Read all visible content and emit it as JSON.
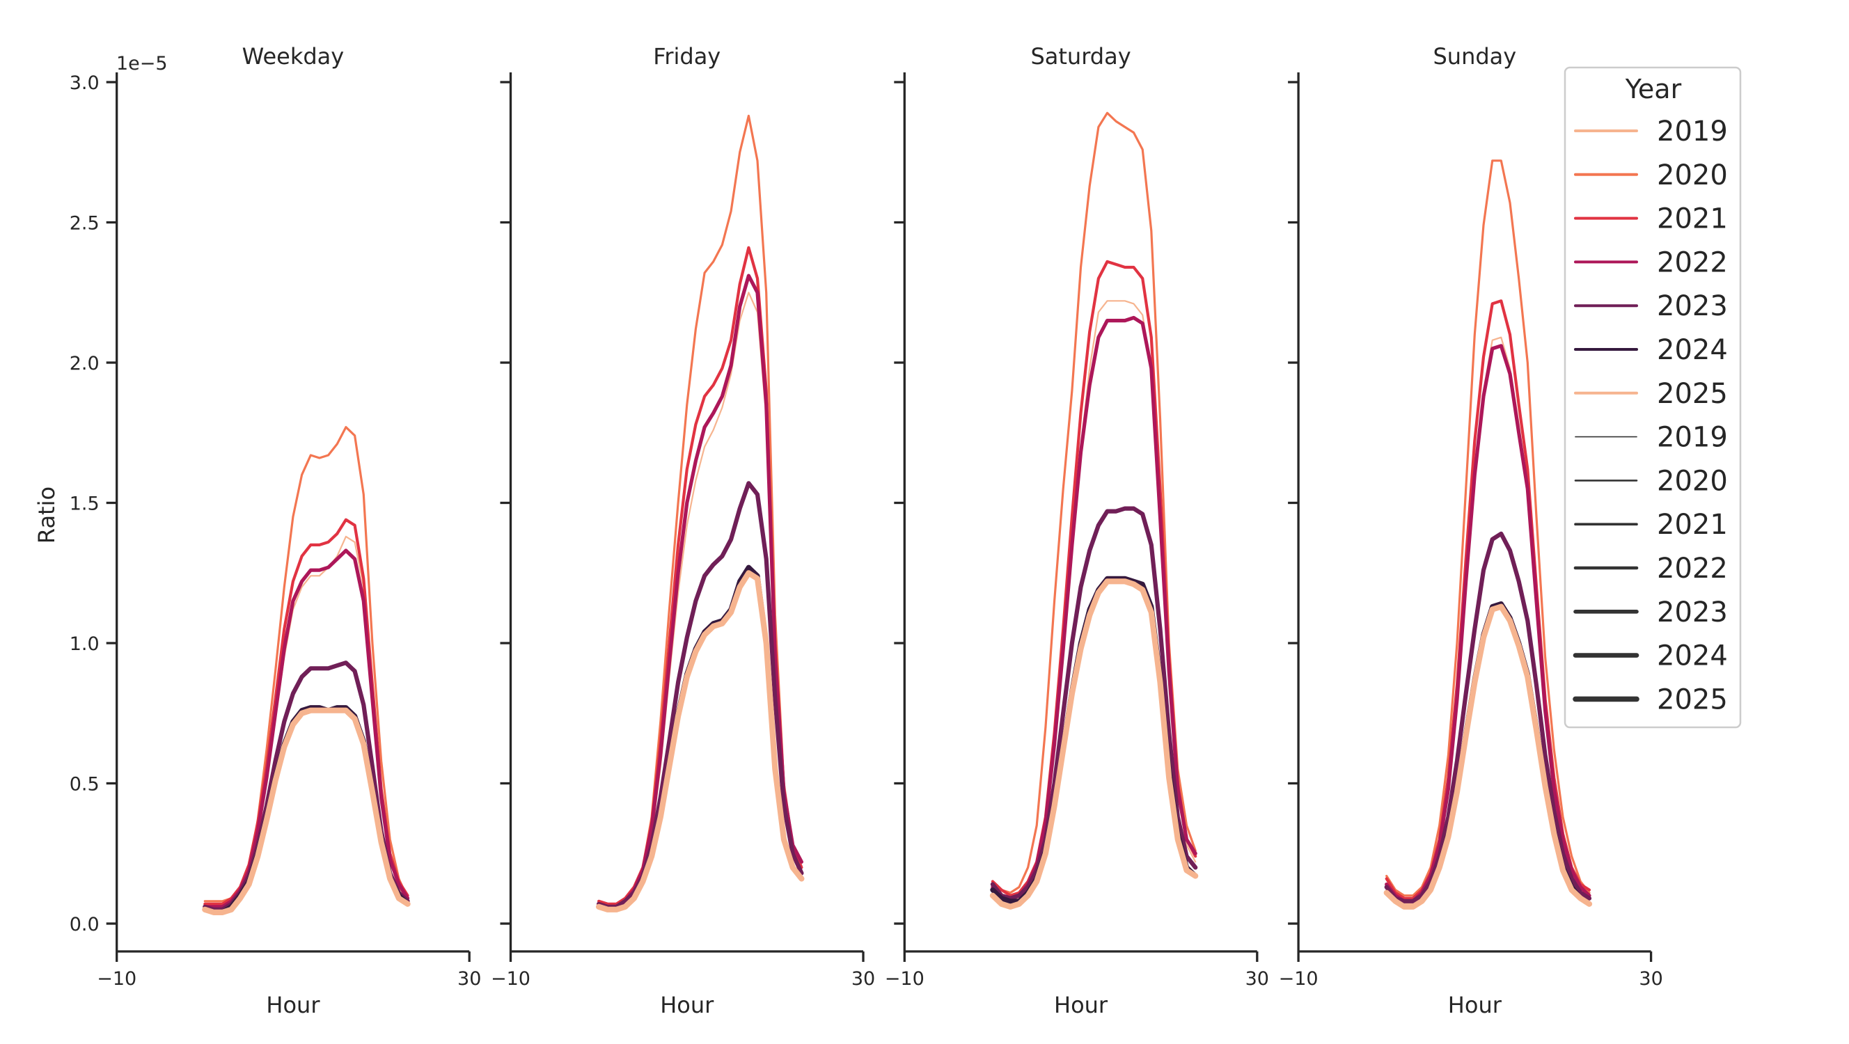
{
  "chart_data": {
    "type": "line",
    "xlabel": "Hour",
    "ylabel": "Ratio",
    "y_offset_text": "1e−5",
    "xlim": [
      -10,
      30
    ],
    "ylim": [
      -0.1,
      3.03
    ],
    "x_ticks": [
      -10,
      30
    ],
    "x_tick_labels": [
      "−10",
      "30"
    ],
    "y_ticks": [
      0,
      0.5,
      1.0,
      1.5,
      2.0,
      2.5,
      3.0
    ],
    "y_tick_labels": [
      "0.0",
      "0.5",
      "1.0",
      "1.5",
      "2.0",
      "2.5",
      "3.0"
    ],
    "grid": false,
    "hours": [
      0,
      1,
      2,
      3,
      4,
      5,
      6,
      7,
      8,
      9,
      10,
      11,
      12,
      13,
      14,
      15,
      16,
      17,
      18,
      19,
      20,
      21,
      22,
      23
    ],
    "colors": {
      "2019": "#f6b48f",
      "2020": "#f37651",
      "2021": "#e13342",
      "2022": "#ad1759",
      "2023": "#701f57",
      "2024": "#35193e",
      "2025": "#f6b48f"
    },
    "legend": {
      "title": "Year",
      "placement": "right",
      "hue_entries": [
        "2019",
        "2020",
        "2021",
        "2022",
        "2023",
        "2024",
        "2025"
      ],
      "size_entries": [
        "2019",
        "2020",
        "2021",
        "2022",
        "2023",
        "2024",
        "2025"
      ],
      "size_color": "#333333"
    },
    "panels": [
      {
        "title": "Weekday",
        "series": [
          {
            "name": "2019",
            "values": [
              0.05,
              0.05,
              0.05,
              0.07,
              0.11,
              0.18,
              0.31,
              0.5,
              0.73,
              0.95,
              1.12,
              1.2,
              1.24,
              1.24,
              1.27,
              1.31,
              1.38,
              1.36,
              1.2,
              0.8,
              0.44,
              0.22,
              0.13,
              0.08
            ]
          },
          {
            "name": "2020",
            "values": [
              0.08,
              0.08,
              0.08,
              0.09,
              0.13,
              0.2,
              0.37,
              0.62,
              0.9,
              1.2,
              1.45,
              1.6,
              1.67,
              1.66,
              1.67,
              1.71,
              1.77,
              1.74,
              1.53,
              1.0,
              0.58,
              0.3,
              0.16,
              0.09
            ]
          },
          {
            "name": "2021",
            "values": [
              0.07,
              0.07,
              0.07,
              0.09,
              0.13,
              0.21,
              0.36,
              0.56,
              0.8,
              1.05,
              1.22,
              1.31,
              1.35,
              1.35,
              1.36,
              1.39,
              1.44,
              1.42,
              1.23,
              0.85,
              0.48,
              0.25,
              0.15,
              0.1
            ]
          },
          {
            "name": "2022",
            "values": [
              0.06,
              0.06,
              0.06,
              0.08,
              0.12,
              0.19,
              0.33,
              0.52,
              0.75,
              0.98,
              1.15,
              1.22,
              1.26,
              1.26,
              1.27,
              1.3,
              1.33,
              1.3,
              1.15,
              0.8,
              0.45,
              0.23,
              0.14,
              0.09
            ]
          },
          {
            "name": "2023",
            "values": [
              0.06,
              0.05,
              0.05,
              0.07,
              0.11,
              0.17,
              0.28,
              0.42,
              0.58,
              0.72,
              0.82,
              0.88,
              0.91,
              0.91,
              0.91,
              0.92,
              0.93,
              0.9,
              0.78,
              0.56,
              0.33,
              0.18,
              0.11,
              0.08
            ]
          },
          {
            "name": "2024",
            "values": [
              0.05,
              0.04,
              0.04,
              0.06,
              0.1,
              0.15,
              0.25,
              0.38,
              0.52,
              0.64,
              0.72,
              0.76,
              0.77,
              0.77,
              0.76,
              0.77,
              0.77,
              0.74,
              0.65,
              0.48,
              0.3,
              0.16,
              0.1,
              0.07
            ]
          },
          {
            "name": "2025",
            "values": [
              0.05,
              0.04,
              0.04,
              0.05,
              0.09,
              0.14,
              0.24,
              0.37,
              0.51,
              0.63,
              0.71,
              0.75,
              0.76,
              0.76,
              0.76,
              0.76,
              0.76,
              0.73,
              0.64,
              0.47,
              0.29,
              0.16,
              0.09,
              0.07
            ]
          }
        ]
      },
      {
        "title": "Friday",
        "series": [
          {
            "name": "2019",
            "values": [
              0.06,
              0.05,
              0.05,
              0.07,
              0.11,
              0.17,
              0.31,
              0.56,
              0.88,
              1.18,
              1.42,
              1.58,
              1.7,
              1.76,
              1.84,
              1.96,
              2.15,
              2.25,
              2.18,
              1.8,
              0.92,
              0.45,
              0.26,
              0.19
            ]
          },
          {
            "name": "2020",
            "values": [
              0.07,
              0.06,
              0.06,
              0.08,
              0.12,
              0.2,
              0.38,
              0.72,
              1.12,
              1.5,
              1.85,
              2.12,
              2.32,
              2.36,
              2.42,
              2.54,
              2.75,
              2.88,
              2.72,
              2.25,
              1.1,
              0.5,
              0.28,
              0.18
            ]
          },
          {
            "name": "2021",
            "values": [
              0.08,
              0.07,
              0.07,
              0.09,
              0.13,
              0.2,
              0.36,
              0.65,
              1.0,
              1.35,
              1.62,
              1.78,
              1.88,
              1.92,
              1.98,
              2.08,
              2.28,
              2.41,
              2.3,
              1.9,
              1.0,
              0.48,
              0.28,
              0.2
            ]
          },
          {
            "name": "2022",
            "values": [
              0.07,
              0.06,
              0.06,
              0.08,
              0.12,
              0.19,
              0.34,
              0.6,
              0.93,
              1.25,
              1.5,
              1.65,
              1.77,
              1.82,
              1.88,
              1.99,
              2.2,
              2.31,
              2.25,
              1.85,
              0.95,
              0.47,
              0.28,
              0.22
            ]
          },
          {
            "name": "2023",
            "values": [
              0.07,
              0.06,
              0.06,
              0.08,
              0.11,
              0.17,
              0.28,
              0.45,
              0.65,
              0.86,
              1.02,
              1.15,
              1.24,
              1.28,
              1.31,
              1.37,
              1.48,
              1.57,
              1.53,
              1.3,
              0.8,
              0.42,
              0.25,
              0.18
            ]
          },
          {
            "name": "2024",
            "values": [
              0.06,
              0.05,
              0.05,
              0.06,
              0.09,
              0.15,
              0.24,
              0.38,
              0.57,
              0.75,
              0.89,
              0.98,
              1.04,
              1.07,
              1.08,
              1.12,
              1.22,
              1.27,
              1.24,
              1.0,
              0.55,
              0.3,
              0.2,
              0.16
            ]
          },
          {
            "name": "2025",
            "values": [
              0.06,
              0.05,
              0.05,
              0.06,
              0.09,
              0.15,
              0.24,
              0.38,
              0.56,
              0.74,
              0.88,
              0.97,
              1.03,
              1.06,
              1.07,
              1.11,
              1.2,
              1.25,
              1.23,
              1.0,
              0.55,
              0.3,
              0.2,
              0.16
            ]
          }
        ]
      },
      {
        "title": "Saturday",
        "series": [
          {
            "name": "2019",
            "values": [
              0.12,
              0.09,
              0.08,
              0.09,
              0.13,
              0.2,
              0.34,
              0.62,
              0.96,
              1.35,
              1.7,
              1.98,
              2.18,
              2.22,
              2.22,
              2.22,
              2.21,
              2.17,
              1.98,
              1.45,
              0.88,
              0.46,
              0.28,
              0.22
            ]
          },
          {
            "name": "2020",
            "values": [
              0.15,
              0.12,
              0.11,
              0.13,
              0.2,
              0.35,
              0.7,
              1.15,
              1.55,
              1.9,
              2.34,
              2.63,
              2.84,
              2.89,
              2.86,
              2.84,
              2.82,
              2.76,
              2.47,
              1.8,
              1.0,
              0.55,
              0.35,
              0.26
            ]
          },
          {
            "name": "2021",
            "values": [
              0.15,
              0.12,
              0.1,
              0.11,
              0.15,
              0.22,
              0.38,
              0.68,
              1.05,
              1.45,
              1.82,
              2.11,
              2.3,
              2.36,
              2.35,
              2.34,
              2.34,
              2.3,
              2.09,
              1.55,
              0.95,
              0.5,
              0.3,
              0.24
            ]
          },
          {
            "name": "2022",
            "values": [
              0.13,
              0.1,
              0.09,
              0.1,
              0.14,
              0.21,
              0.36,
              0.64,
              0.98,
              1.35,
              1.68,
              1.92,
              2.09,
              2.15,
              2.15,
              2.15,
              2.16,
              2.14,
              1.98,
              1.45,
              0.9,
              0.48,
              0.3,
              0.25
            ]
          },
          {
            "name": "2023",
            "values": [
              0.14,
              0.1,
              0.09,
              0.1,
              0.13,
              0.19,
              0.3,
              0.5,
              0.75,
              1.0,
              1.2,
              1.33,
              1.42,
              1.47,
              1.47,
              1.48,
              1.48,
              1.46,
              1.35,
              1.05,
              0.68,
              0.38,
              0.24,
              0.2
            ]
          },
          {
            "name": "2024",
            "values": [
              0.12,
              0.09,
              0.08,
              0.08,
              0.11,
              0.16,
              0.26,
              0.43,
              0.63,
              0.83,
              1.0,
              1.12,
              1.19,
              1.23,
              1.23,
              1.23,
              1.22,
              1.21,
              1.13,
              0.88,
              0.55,
              0.32,
              0.2,
              0.17
            ]
          },
          {
            "name": "2025",
            "values": [
              0.1,
              0.07,
              0.06,
              0.07,
              0.1,
              0.15,
              0.25,
              0.42,
              0.62,
              0.82,
              0.98,
              1.1,
              1.18,
              1.22,
              1.22,
              1.22,
              1.21,
              1.19,
              1.11,
              0.86,
              0.52,
              0.3,
              0.19,
              0.17
            ]
          }
        ]
      },
      {
        "title": "Sunday",
        "series": [
          {
            "name": "2019",
            "values": [
              0.12,
              0.09,
              0.07,
              0.07,
              0.1,
              0.16,
              0.27,
              0.47,
              0.78,
              1.2,
              1.6,
              1.9,
              2.08,
              2.09,
              1.98,
              1.78,
              1.56,
              1.15,
              0.75,
              0.47,
              0.28,
              0.17,
              0.11,
              0.09
            ]
          },
          {
            "name": "2020",
            "values": [
              0.17,
              0.12,
              0.1,
              0.1,
              0.13,
              0.2,
              0.35,
              0.6,
              1.0,
              1.55,
              2.1,
              2.49,
              2.72,
              2.72,
              2.57,
              2.3,
              2.0,
              1.45,
              0.95,
              0.62,
              0.38,
              0.24,
              0.15,
              0.11
            ]
          },
          {
            "name": "2021",
            "values": [
              0.16,
              0.11,
              0.09,
              0.09,
              0.12,
              0.18,
              0.3,
              0.52,
              0.85,
              1.3,
              1.72,
              2.02,
              2.21,
              2.22,
              2.1,
              1.85,
              1.62,
              1.2,
              0.8,
              0.52,
              0.32,
              0.2,
              0.14,
              0.12
            ]
          },
          {
            "name": "2022",
            "values": [
              0.14,
              0.1,
              0.08,
              0.08,
              0.11,
              0.17,
              0.28,
              0.48,
              0.8,
              1.22,
              1.6,
              1.88,
              2.05,
              2.06,
              1.96,
              1.75,
              1.55,
              1.15,
              0.76,
              0.48,
              0.3,
              0.19,
              0.13,
              0.1
            ]
          },
          {
            "name": "2023",
            "values": [
              0.13,
              0.09,
              0.08,
              0.08,
              0.1,
              0.15,
              0.24,
              0.38,
              0.58,
              0.82,
              1.05,
              1.26,
              1.37,
              1.39,
              1.33,
              1.22,
              1.08,
              0.85,
              0.6,
              0.4,
              0.25,
              0.16,
              0.11,
              0.09
            ]
          },
          {
            "name": "2024",
            "values": [
              0.11,
              0.08,
              0.06,
              0.06,
              0.08,
              0.12,
              0.2,
              0.32,
              0.48,
              0.68,
              0.87,
              1.03,
              1.13,
              1.14,
              1.09,
              1.0,
              0.89,
              0.7,
              0.5,
              0.33,
              0.2,
              0.13,
              0.09,
              0.07
            ]
          },
          {
            "name": "2025",
            "values": [
              0.11,
              0.08,
              0.06,
              0.06,
              0.08,
              0.12,
              0.2,
              0.31,
              0.47,
              0.67,
              0.86,
              1.02,
              1.12,
              1.13,
              1.08,
              0.99,
              0.88,
              0.69,
              0.49,
              0.32,
              0.19,
              0.12,
              0.09,
              0.07
            ]
          }
        ]
      }
    ]
  }
}
